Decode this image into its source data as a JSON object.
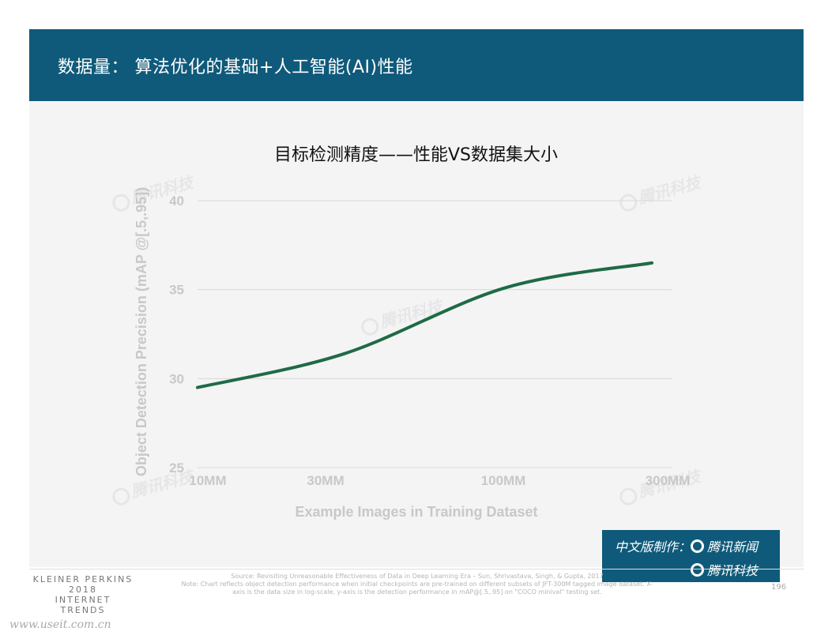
{
  "header": {
    "title": "数据量： 算法优化的基础+人工智能(AI)性能"
  },
  "chart_data": {
    "type": "line",
    "title": "目标检测精度——性能VS数据集大小",
    "xlabel": "Example Images in Training Dataset",
    "ylabel": "Object Detection Precision (mAP @[.5,.95])",
    "x_scale": "log",
    "x_ticks": [
      {
        "value": 10,
        "label": "10MM"
      },
      {
        "value": 30,
        "label": "30MM"
      },
      {
        "value": 100,
        "label": "100MM"
      },
      {
        "value": 300,
        "label": "300MM"
      }
    ],
    "y_ticks": [
      25,
      30,
      35,
      40
    ],
    "ylim": [
      25,
      40
    ],
    "grid": true,
    "series": [
      {
        "color": "#1e6b45",
        "x": [
          10,
          30,
          100,
          300
        ],
        "y": [
          29.5,
          31.4,
          35.1,
          36.5
        ]
      }
    ]
  },
  "watermark": {
    "text": "腾讯科技"
  },
  "credits": {
    "line1": "中文版制作：",
    "brand1": "腾讯新闻",
    "brand2": "腾讯科技"
  },
  "footer": {
    "brand_line1": "KLEINER PERKINS",
    "brand_line2": "2018",
    "brand_line3": "INTERNET TRENDS",
    "source": "Source: Revisiting Unreasonable Effectiveness of Data in Deep Learning Era – Sun, Shrivastava, Singh, & Gupta, 2017",
    "note": "Note: Chart reflects object detection performance when initial checkpoints are pre-trained on different subsets of JFT-300M tagged image dataset. X-axis is the data size in log-scale, y-axis is the detection performance in mAP@[.5,.95] on \"COCO minival\" testing set.",
    "page_number": "196",
    "site": "www.useit.com.cn"
  }
}
